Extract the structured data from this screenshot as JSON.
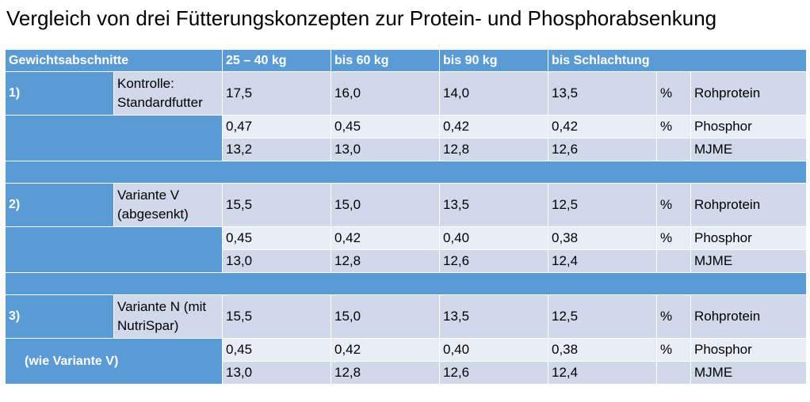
{
  "title": "Vergleich von drei Fütterungskonzepten zur Protein- und Phosphorabsenkung",
  "header": [
    "Gewichtsabschnitte",
    "25 – 40 kg",
    "bis 60 kg",
    "bis 90 kg",
    "bis Schlachtung"
  ],
  "groups": [
    {
      "num": "1)",
      "name": "Kontrolle: Standardfutter",
      "sub": "",
      "rows": [
        {
          "values": [
            "17,5",
            "16,0",
            "14,0",
            "13,5"
          ],
          "unit": "%",
          "param": "Rohprotein"
        },
        {
          "values": [
            "0,47",
            "0,45",
            "0,42",
            "0,42"
          ],
          "unit": "%",
          "param": "Phosphor"
        },
        {
          "values": [
            "13,2",
            "13,0",
            "12,8",
            "12,6"
          ],
          "unit": "",
          "param": "MJME"
        }
      ]
    },
    {
      "num": "2)",
      "name": "Variante V (abgesenkt)",
      "sub": "",
      "rows": [
        {
          "values": [
            "15,5",
            "15,0",
            "13,5",
            "12,5"
          ],
          "unit": "%",
          "param": "Rohprotein"
        },
        {
          "values": [
            "0,45",
            "0,42",
            "0,40",
            "0,38"
          ],
          "unit": "%",
          "param": "Phosphor"
        },
        {
          "values": [
            "13,0",
            "12,8",
            "12,6",
            "12,4"
          ],
          "unit": "",
          "param": "MJME"
        }
      ]
    },
    {
      "num": "3)",
      "name": "Variante N (mit NutriSpar)",
      "sub": "(wie Variante V)",
      "rows": [
        {
          "values": [
            "15,5",
            "15,0",
            "13,5",
            "12,5"
          ],
          "unit": "%",
          "param": "Rohprotein"
        },
        {
          "values": [
            "0,45",
            "0,42",
            "0,40",
            "0,38"
          ],
          "unit": "%",
          "param": "Phosphor"
        },
        {
          "values": [
            "13,0",
            "12,8",
            "12,6",
            "12,4"
          ],
          "unit": "",
          "param": "MJME"
        }
      ]
    }
  ]
}
